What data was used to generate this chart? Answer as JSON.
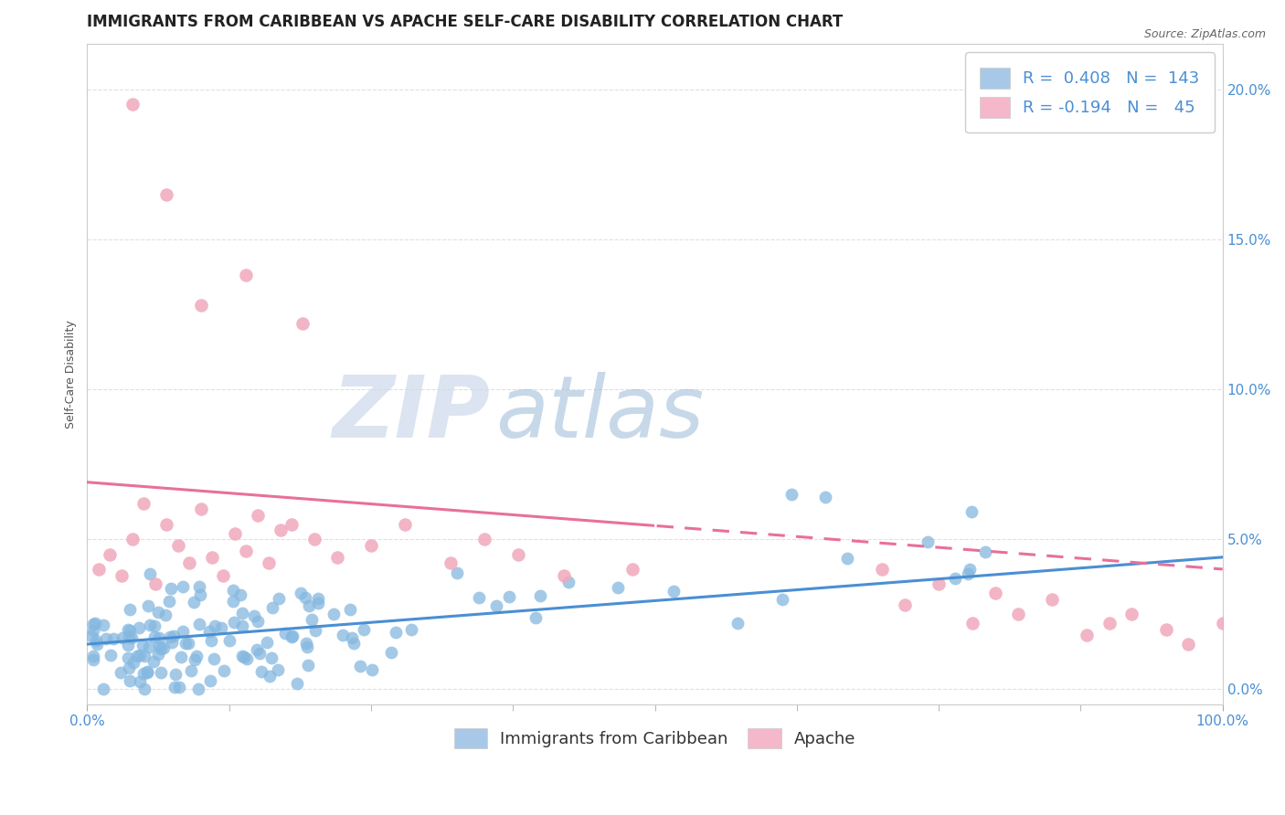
{
  "title": "IMMIGRANTS FROM CARIBBEAN VS APACHE SELF-CARE DISABILITY CORRELATION CHART",
  "source": "Source: ZipAtlas.com",
  "ylabel": "Self-Care Disability",
  "ytick_vals": [
    0.0,
    0.05,
    0.1,
    0.15,
    0.2
  ],
  "ytick_labels": [
    "0.0%",
    "5.0%",
    "10.0%",
    "15.0%",
    "20.0%"
  ],
  "xlim": [
    0.0,
    1.0
  ],
  "ylim": [
    -0.005,
    0.215
  ],
  "legend_bottom": [
    "Immigrants from Caribbean",
    "Apache"
  ],
  "blue_scatter_color": "#85b8e0",
  "pink_scatter_color": "#f0a8bc",
  "blue_line_color": "#4a8fd4",
  "pink_line_color": "#e8709a",
  "blue_legend_color": "#a8c8e8",
  "pink_legend_color": "#f4b8ca",
  "watermark_zip_color": "#d8e4f0",
  "watermark_atlas_color": "#b8cce4",
  "background_color": "#ffffff",
  "grid_color": "#e0e0e0",
  "title_color": "#222222",
  "source_color": "#666666",
  "tick_color": "#4a8fd4",
  "ylabel_color": "#555555",
  "legend_text_color": "#4a8fd4",
  "legend_bottom_color": "#333333",
  "R_blue": 0.408,
  "N_blue": 143,
  "R_pink": -0.194,
  "N_pink": 45,
  "blue_line_start_y": 0.015,
  "blue_line_end_y": 0.044,
  "pink_line_start_y": 0.069,
  "pink_line_end_y": 0.04,
  "title_fontsize": 12,
  "source_fontsize": 9,
  "axis_label_fontsize": 9,
  "legend_fontsize": 13,
  "tick_fontsize": 11,
  "watermark_fontsize_zip": 70,
  "watermark_fontsize_atlas": 70
}
